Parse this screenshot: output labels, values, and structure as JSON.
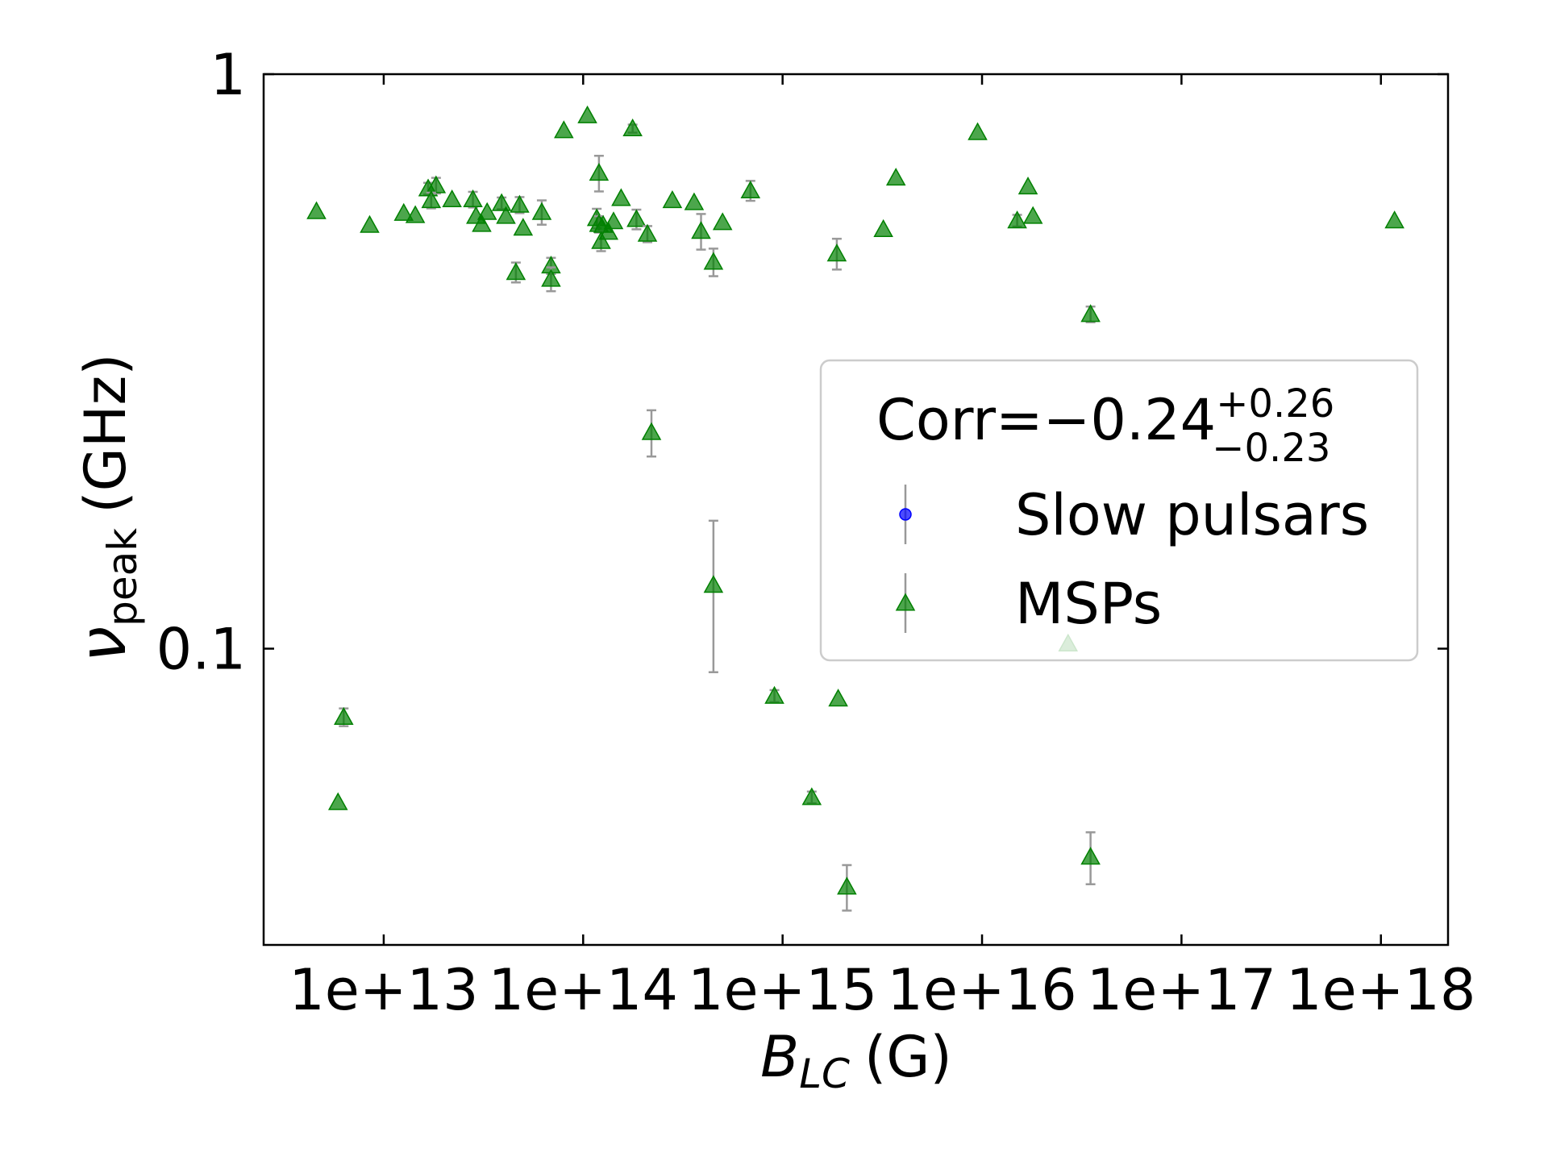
{
  "chart_data": {
    "type": "scatter",
    "xlabel": {
      "main": "B",
      "sub": "LC",
      "unit": "(G)"
    },
    "ylabel": {
      "main": "ν",
      "sub": "peak",
      "unit": "(GHz)"
    },
    "legend_title": {
      "main": "Corr=−0.24",
      "sup": "+0.26",
      "sub": "−0.23"
    },
    "legend_position": "center right",
    "xscale": "log",
    "yscale": "log",
    "xlim": [
      2500000000000.0,
      2.17e+18
    ],
    "ylim": [
      0.0305,
      1
    ],
    "xticks": [
      {
        "value": 10000000000000.0,
        "label": "1e+13"
      },
      {
        "value": 100000000000000.0,
        "label": "1e+14"
      },
      {
        "value": 1000000000000000.0,
        "label": "1e+15"
      },
      {
        "value": 1e+16,
        "label": "1e+16"
      },
      {
        "value": 1e+17,
        "label": "1e+17"
      },
      {
        "value": 1e+18,
        "label": "1e+18"
      }
    ],
    "yticks": [
      0.1,
      1
    ],
    "series": [
      {
        "name": "Slow pulsars",
        "color": "#0000ff",
        "marker": "circle",
        "x": [],
        "values": [],
        "errors": []
      },
      {
        "name": "MSPs",
        "color": "#008000",
        "marker": "triangle",
        "x": [
          4600000000000.0,
          8500000000000.0,
          12600000000000.0,
          14400000000000.0,
          16700000000000.0,
          18300000000000.0,
          17300000000000.0,
          22000000000000.0,
          28000000000000.0,
          29000000000000.0,
          31000000000000.0,
          33000000000000.0,
          39000000000000.0,
          41000000000000.0,
          48000000000000.0,
          50000000000000.0,
          62000000000000.0,
          46000000000000.0,
          69000000000000.0,
          69000000000000.0,
          80000000000000.0,
          105000000000000.0,
          120000000000000.0,
          117000000000000.0,
          120000000000000.0,
          123000000000000.0,
          126000000000000.0,
          134000000000000.0,
          142000000000000.0,
          155000000000000.0,
          177000000000000.0,
          185000000000000.0,
          210000000000000.0,
          280000000000000.0,
          360000000000000.0,
          390000000000000.0,
          450000000000000.0,
          500000000000000.0,
          690000000000000.0,
          220000000000000.0,
          450000000000000.0,
          910000000000000.0,
          1900000000000000.0,
          1400000000000000.0,
          2100000000000000.0,
          1870000000000000.0,
          3200000000000000.0,
          3700000000000000.0,
          9500000000000000.0,
          1.5e+16,
          1.7e+16,
          1.8e+16,
          3.5e+16,
          2.7e+16,
          3.5e+16,
          5900000000000.0,
          6300000000000.0,
          1.17e+18
        ],
        "values": [
          0.577,
          0.546,
          0.573,
          0.568,
          0.632,
          0.64,
          0.603,
          0.605,
          0.605,
          0.566,
          0.548,
          0.575,
          0.596,
          0.566,
          0.592,
          0.54,
          0.575,
          0.452,
          0.464,
          0.44,
          0.798,
          0.847,
          0.673,
          0.561,
          0.548,
          0.512,
          0.546,
          0.531,
          0.554,
          0.608,
          0.804,
          0.559,
          0.527,
          0.603,
          0.598,
          0.533,
          0.471,
          0.552,
          0.627,
          0.238,
          0.129,
          0.0827,
          0.0818,
          0.0551,
          0.0385,
          0.487,
          0.537,
          0.66,
          0.792,
          0.556,
          0.637,
          0.566,
          0.382,
          0.102,
          0.0434,
          0.054,
          0.076,
          0.556
        ],
        "errors": [
          0,
          0,
          0,
          0,
          0.015,
          0.02,
          0.019,
          0,
          0.019,
          0,
          0,
          0,
          0.014,
          0,
          0.019,
          0,
          0.028,
          0.018,
          0.015,
          0.021,
          0,
          0,
          0.048,
          0.022,
          0.018,
          0.02,
          0,
          0,
          0,
          0,
          0.013,
          0.022,
          0.017,
          0,
          0,
          0.038,
          0.026,
          0,
          0.025,
          0.022,
          0.038,
          0.002,
          0,
          0.0013,
          0.0035,
          0.03,
          0,
          0,
          0,
          0.013,
          0,
          0,
          0.012,
          0,
          0.0045,
          0,
          0.0027,
          0
        ]
      }
    ]
  }
}
